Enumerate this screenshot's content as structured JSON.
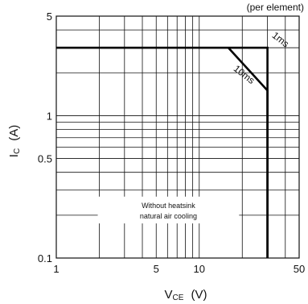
{
  "chart_data": {
    "type": "line",
    "header_note": "(per element)",
    "xaxis": {
      "label_main": "V",
      "label_sub": "CE",
      "label_unit": "(V)",
      "scale": "log",
      "range": [
        1,
        50
      ],
      "tick_values": [
        1,
        5,
        10,
        50
      ],
      "tick_labels": [
        "1",
        "5",
        "10",
        "50"
      ],
      "gridlines": [
        1,
        2,
        3,
        4,
        5,
        6,
        7,
        8,
        9,
        10,
        20,
        30,
        40,
        50
      ]
    },
    "yaxis": {
      "label_main": "I",
      "label_sub": "C",
      "label_unit": "(A)",
      "scale": "log",
      "range": [
        0.1,
        5
      ],
      "tick_values": [
        0.1,
        0.5,
        1,
        5
      ],
      "tick_labels": [
        "0.1",
        "0.5",
        "1",
        "5"
      ],
      "gridlines": [
        0.1,
        0.2,
        0.3,
        0.4,
        0.5,
        0.6,
        0.7,
        0.8,
        0.9,
        1,
        2,
        3,
        4,
        5
      ]
    },
    "grid": true,
    "series": [
      {
        "label": "1ms",
        "points": [
          [
            1,
            3
          ],
          [
            30,
            3
          ],
          [
            30,
            0.1
          ]
        ]
      },
      {
        "label": "10ms",
        "points": [
          [
            16,
            3
          ],
          [
            30,
            1.5
          ],
          [
            30,
            0.1
          ]
        ]
      }
    ],
    "annotations": {
      "box_line1": "Without heatsink",
      "box_line2": "natural air cooling"
    }
  }
}
